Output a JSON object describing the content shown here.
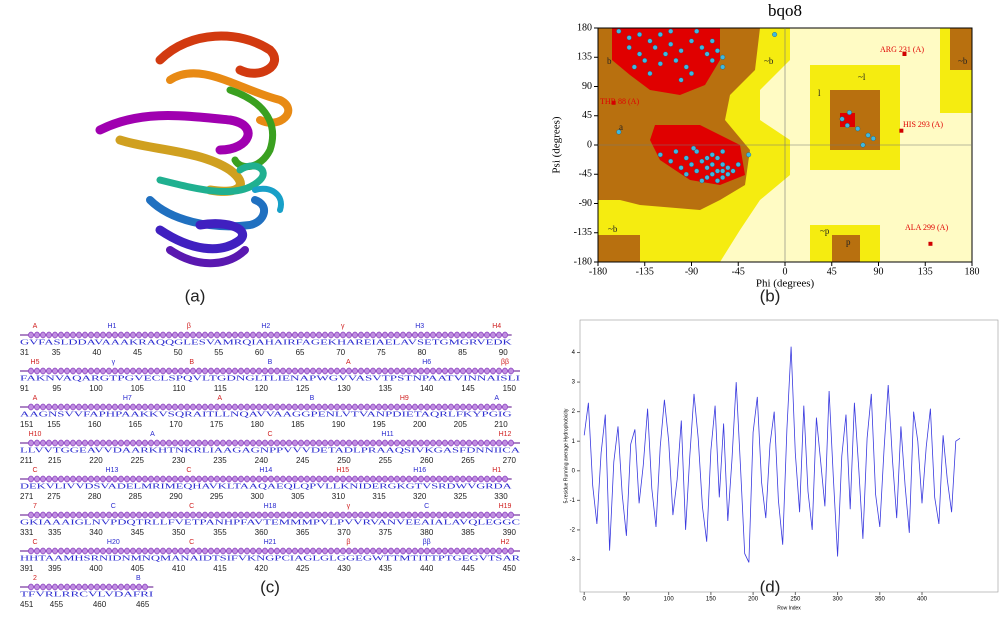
{
  "panel_labels": [
    "(a)",
    "(b)",
    "(c)",
    "(d)"
  ],
  "chart_data": [
    {
      "type": "scatter",
      "title": "bqo8",
      "x_label": "Phi (degrees)",
      "y_label": "Psi (degrees)",
      "xlim": [
        -180,
        180
      ],
      "ylim": [
        -180,
        180
      ],
      "xticks": [
        -180,
        -135,
        -90,
        -45,
        0,
        45,
        90,
        135,
        180
      ],
      "yticks": [
        -180,
        -135,
        -90,
        -45,
        0,
        45,
        90,
        135,
        180
      ],
      "series": [
        {
          "color": "#3fb8e0",
          "x": [
            -150,
            -140,
            -130,
            -125,
            -120,
            -115,
            -110,
            -105,
            -100,
            -95,
            -140,
            -135,
            -120,
            -90,
            -80,
            -75,
            -70,
            -65,
            -150,
            -160,
            -110,
            -85,
            -130,
            -145,
            -100,
            -90,
            -70,
            -60,
            -95,
            -90,
            -85,
            -80,
            -75,
            -70,
            -65,
            -60,
            -65,
            -70,
            -55,
            -60,
            -75,
            -85,
            -100,
            -110,
            -105,
            -80,
            -55,
            -50,
            -65,
            -95,
            -120,
            -70,
            -60,
            -75,
            -88,
            -60,
            -45,
            55,
            60,
            70,
            80,
            62,
            85,
            75,
            -160,
            -60,
            -35,
            -10
          ],
          "y": [
            165,
            170,
            160,
            150,
            170,
            140,
            155,
            130,
            145,
            120,
            140,
            130,
            125,
            160,
            150,
            140,
            130,
            145,
            150,
            175,
            175,
            175,
            110,
            120,
            100,
            110,
            160,
            135,
            -20,
            -30,
            -40,
            -25,
            -35,
            -45,
            -40,
            -30,
            -20,
            -15,
            -45,
            -50,
            -50,
            -10,
            -35,
            -25,
            -10,
            -55,
            -35,
            -40,
            -55,
            -45,
            -15,
            -30,
            -40,
            -20,
            -5,
            -10,
            -30,
            40,
            30,
            25,
            15,
            50,
            10,
            0,
            20,
            120,
            -15,
            170
          ]
        },
        {
          "color": "#d00000",
          "x": [
            115,
            -165,
            112,
            140
          ],
          "y": [
            140,
            65,
            22,
            -152
          ]
        }
      ],
      "annotations": [
        "ARG 231 (A)",
        "THR 88 (A)",
        "HIS 293 (A)",
        "ALA 299 (A)"
      ],
      "region_labels": [
        "b",
        "a",
        "l",
        "p",
        "~b",
        "~b",
        "~l",
        "~p",
        "~b"
      ]
    },
    {
      "type": "line",
      "x_label": "Row Index",
      "y_label": "5-residue Running average Hydrophobicity",
      "xlim": [
        -5,
        490
      ],
      "ylim": [
        -4.1,
        5.1
      ],
      "xticks": [
        0,
        50,
        100,
        150,
        200,
        250,
        300,
        350,
        400
      ],
      "yticks": [
        -3,
        -2,
        -1,
        0,
        1,
        2,
        3,
        4
      ],
      "series": [
        {
          "color": "#3a3adf",
          "x": [
            0,
            5,
            10,
            15,
            20,
            25,
            30,
            35,
            40,
            45,
            50,
            55,
            60,
            65,
            70,
            75,
            80,
            85,
            90,
            95,
            100,
            105,
            110,
            115,
            120,
            125,
            130,
            135,
            140,
            145,
            150,
            155,
            160,
            165,
            170,
            175,
            180,
            185,
            190,
            195,
            200,
            205,
            210,
            215,
            220,
            225,
            230,
            235,
            240,
            245,
            250,
            255,
            260,
            265,
            270,
            275,
            280,
            285,
            290,
            295,
            300,
            305,
            310,
            315,
            320,
            325,
            330,
            335,
            340,
            345,
            350,
            355,
            360,
            365,
            370,
            375,
            380,
            385,
            390,
            395,
            400,
            405,
            410,
            415,
            420,
            425,
            430,
            435,
            440,
            445
          ],
          "values": [
            1.2,
            2.3,
            -0.5,
            -1.8,
            0.6,
            1.9,
            -2.7,
            0.3,
            1.5,
            -0.8,
            -2.2,
            0.9,
            1.4,
            -1.1,
            0.2,
            2.1,
            -0.6,
            -1.9,
            0.8,
            2.4,
            1.0,
            -1.5,
            -0.3,
            1.7,
            -2.0,
            0.5,
            2.6,
            1.1,
            -1.2,
            -2.4,
            0.7,
            2.2,
            -0.9,
            1.6,
            -1.7,
            0.4,
            3.0,
            0.2,
            -2.8,
            -3.1,
            1.3,
            2.5,
            -0.4,
            -1.6,
            0.9,
            2.0,
            -1.0,
            -2.5,
            1.4,
            4.2,
            0.6,
            -1.4,
            2.2,
            -0.7,
            -2.0,
            1.8,
            0.3,
            -1.2,
            2.7,
            -0.2,
            -2.9,
            0.5,
            1.9,
            -1.3,
            2.3,
            0.1,
            -2.3,
            1.1,
            2.6,
            -0.8,
            -1.9,
            0.7,
            2.9,
            0.4,
            -1.6,
            1.5,
            -0.5,
            -2.1,
            2.0,
            1.0,
            -1.1,
            0.8,
            2.1,
            -0.9,
            -1.8,
            1.2,
            -0.3,
            -1.4,
            1.0,
            1.1
          ]
        }
      ]
    }
  ],
  "sequence_panel": {
    "rows": [
      {
        "structure": [
          "A",
          "H1",
          "β",
          "H2",
          "γ",
          "H3",
          "H4"
        ],
        "sequence": "GVFASLDDAVAAAKRAQQGLESVAMRQIAHAIRFAGEKHAREIAELAVSETGMGRVEDK",
        "numbers": [
          31,
          35,
          40,
          45,
          50,
          55,
          60,
          65,
          70,
          75,
          80,
          85,
          90
        ]
      },
      {
        "structure": [
          "H5",
          "γ",
          "B",
          "B",
          "A",
          "H6",
          "ββ"
        ],
        "sequence": "FAKNVAQARGTPGVECLSPQVLTGDNGLTLIENAPWGVVASVTPSTNPAATVINNAISLI",
        "numbers": [
          91,
          95,
          100,
          105,
          110,
          115,
          120,
          125,
          130,
          135,
          140,
          145,
          150
        ]
      },
      {
        "structure": [
          "A",
          "H7",
          "A",
          "B",
          "H9",
          "A"
        ],
        "sequence": "AAGNSVVFAPHPAAKKVSQRAITLLNQAVVAAGGPENLVTVANPDIETAQRLFKYPGIG",
        "numbers": [
          151,
          155,
          160,
          165,
          170,
          175,
          180,
          185,
          190,
          195,
          200,
          205,
          210
        ]
      },
      {
        "structure": [
          "H10",
          "A",
          "C",
          "H11",
          "H12"
        ],
        "sequence": "LLVVTGGEAVVDAARKHTNKRLIAAGAGNPPVVVDETADLPRAAQSIVKGASFDNNIICA",
        "numbers": [
          211,
          215,
          220,
          225,
          230,
          235,
          240,
          245,
          250,
          255,
          260,
          265,
          270
        ]
      },
      {
        "structure": [
          "C",
          "H13",
          "C",
          "H14",
          "H15",
          "H16",
          "H1"
        ],
        "sequence": "DEKVLIVVDSVADELMRIMEQHAVKLTAAQAEQLQPVLLKNIDERGKGTVSRDWVGRDA",
        "numbers": [
          271,
          275,
          280,
          285,
          290,
          295,
          300,
          305,
          310,
          315,
          320,
          325,
          330
        ]
      },
      {
        "structure": [
          "7",
          "C",
          "C",
          "H18",
          "γ",
          "C",
          "H19"
        ],
        "sequence": "GKIAAAIGLNVPDQTRLLFVETPANHPFAVTEMMMPVLPVVRVANVEEAIALAVQLEGGC",
        "numbers": [
          331,
          335,
          340,
          345,
          350,
          355,
          360,
          365,
          370,
          375,
          380,
          385,
          390
        ]
      },
      {
        "structure": [
          "C",
          "H20",
          "C",
          "H21",
          "β",
          "ββ",
          "H2"
        ],
        "sequence": "HHTAAMHSRNIDNMNQMANAIDTSIFVKNGPCIAGLGLGGEGWTTMTITTPTGEGVTSAR",
        "numbers": [
          391,
          395,
          400,
          405,
          410,
          415,
          420,
          425,
          430,
          435,
          440,
          445,
          450
        ]
      },
      {
        "structure": [
          "2",
          "B"
        ],
        "sequence": "TFVRLRRCVLVDAFRI",
        "numbers": [
          451,
          455,
          460,
          465
        ]
      }
    ]
  }
}
